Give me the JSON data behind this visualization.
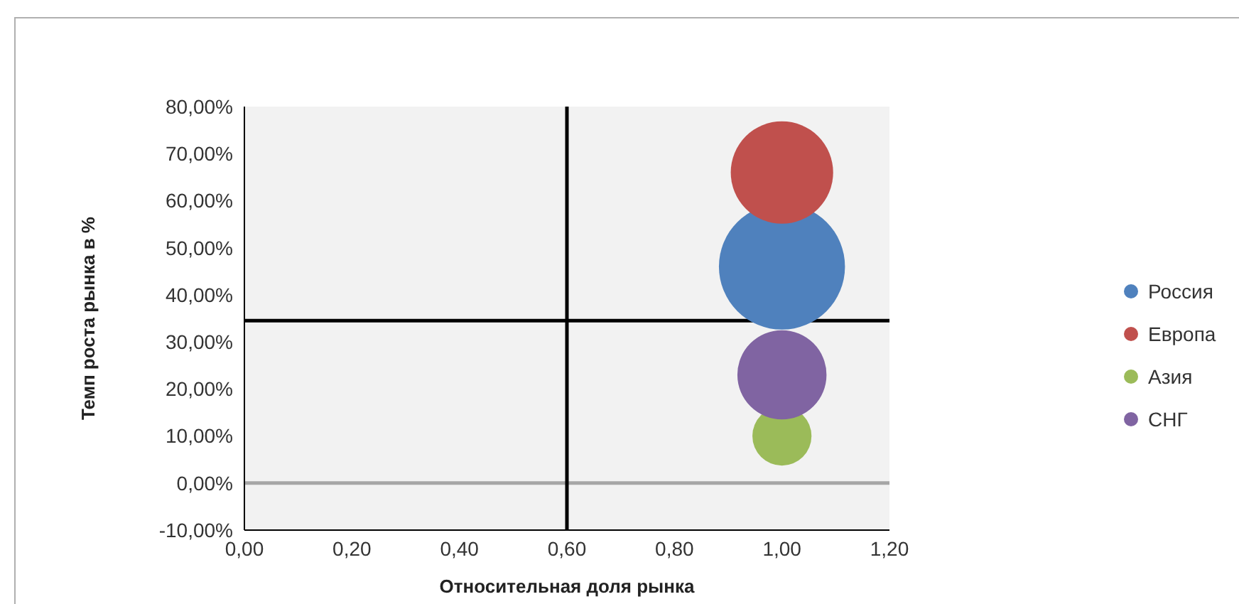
{
  "chart_data": {
    "type": "bubble",
    "xlabel": "Относительная доля рынка",
    "ylabel": "Темп роста рынка в %",
    "x": [
      1.0
    ],
    "series": [
      {
        "name": "Россия",
        "color": "#4f81bd",
        "values": [
          46
        ],
        "sizes": [
          1
        ]
      },
      {
        "name": "Европа",
        "color": "#c0504d",
        "values": [
          66
        ],
        "sizes": [
          0.66
        ]
      },
      {
        "name": "Азия",
        "color": "#9bbb59",
        "values": [
          10
        ],
        "sizes": [
          0.22
        ]
      },
      {
        "name": "СНГ",
        "color": "#8064a2",
        "values": [
          23
        ],
        "sizes": [
          0.5
        ]
      }
    ],
    "xlim": [
      0,
      1.2
    ],
    "xticks": [
      {
        "value": 0,
        "label": "0,00"
      },
      {
        "value": 0.2,
        "label": "0,20"
      },
      {
        "value": 0.4,
        "label": "0,40"
      },
      {
        "value": 0.6,
        "label": "0,60"
      },
      {
        "value": 0.8,
        "label": "0,80"
      },
      {
        "value": 1,
        "label": "1,00"
      },
      {
        "value": 1.2,
        "label": "1,20"
      }
    ],
    "ylim": [
      -10,
      80
    ],
    "yticks": [
      {
        "value": -10,
        "label": "-10,00%"
      },
      {
        "value": 0,
        "label": "0,00%"
      },
      {
        "value": 10,
        "label": "10,00%"
      },
      {
        "value": 20,
        "label": "20,00%"
      },
      {
        "value": 30,
        "label": "30,00%"
      },
      {
        "value": 40,
        "label": "40,00%"
      },
      {
        "value": 50,
        "label": "50,00%"
      },
      {
        "value": 60,
        "label": "60,00%"
      },
      {
        "value": 70,
        "label": "70,00%"
      },
      {
        "value": 80,
        "label": "80,00%"
      }
    ],
    "ref_lines": [
      {
        "axis": "y",
        "value": 0,
        "color": "#a6a6a6"
      },
      {
        "axis": "x",
        "value": 0.6,
        "color": "#000000"
      },
      {
        "axis": "y",
        "value": 34.5,
        "color": "#000000"
      }
    ],
    "legend": "right"
  }
}
